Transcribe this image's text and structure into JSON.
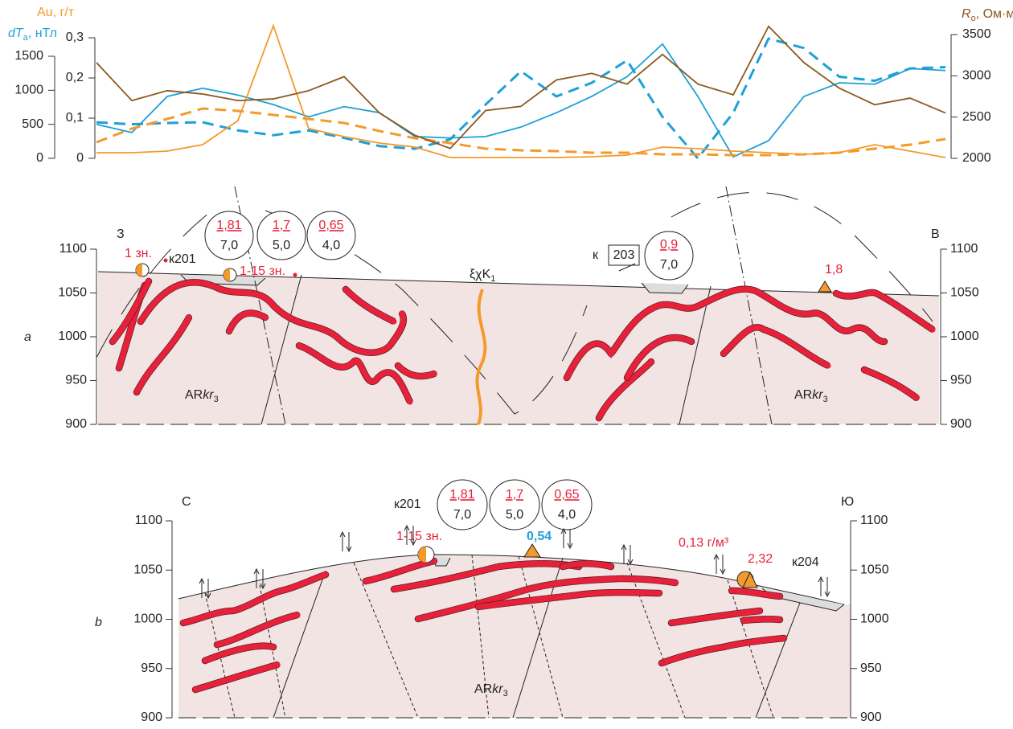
{
  "chart_data": {
    "type": "line",
    "y_title": {
      "italic": "dT",
      "sub": "a",
      "rest": ", нТл"
    },
    "y2_title": "Au, г/т",
    "y3_title": {
      "italic": "R",
      "sub": "о",
      "rest": ", Ом·м"
    },
    "categories": [
      null,
      null,
      null,
      null,
      null,
      null,
      null,
      null,
      null,
      null,
      null,
      null,
      null,
      null,
      null,
      null,
      null,
      null,
      null,
      null,
      null,
      null,
      null,
      null,
      null
    ],
    "ylim": [
      0,
      1500
    ],
    "yticks": [
      0,
      500,
      1000,
      1500
    ],
    "y_color": "#1ea0d7",
    "y2lim": [
      0,
      0.3
    ],
    "y2ticks": [
      0,
      {
        "value": 0.1,
        "label": "0,1"
      },
      {
        "value": 0.2,
        "label": "0,2"
      },
      {
        "value": 0.3,
        "label": "0,3"
      }
    ],
    "y2_color": "#f39a2b",
    "y3lim": [
      2000,
      3500
    ],
    "y3ticks": [
      2000,
      2500,
      3000,
      3500
    ],
    "y3_color": "#8b5a1e",
    "series": [
      {
        "color": "#1ea0d7",
        "dash": false,
        "values": [
          500,
          380,
          910,
          1030,
          930,
          790,
          610,
          760,
          670,
          320,
          300,
          320,
          460,
          670,
          910,
          1200,
          1680,
          910,
          20,
          260,
          910,
          1110,
          1090,
          1320,
          1290
        ]
      },
      {
        "color": "#1ea0d7",
        "dash": true,
        "values": [
          530,
          500,
          520,
          530,
          410,
          340,
          410,
          300,
          180,
          140,
          280,
          790,
          1280,
          910,
          1110,
          1440,
          610,
          0,
          670,
          1760,
          1620,
          1200,
          1140,
          1320,
          1340
        ]
      },
      {
        "color": "#f39a2b",
        "dash": false,
        "axis": "y2",
        "values": [
          0.014,
          0.014,
          0.018,
          0.034,
          0.094,
          0.33,
          0.074,
          0.054,
          0.038,
          0.028,
          0.002,
          0.002,
          0.002,
          0.002,
          0.004,
          0.008,
          0.028,
          0.024,
          0.018,
          0.014,
          0.01,
          0.014,
          0.034,
          0.018,
          0.002
        ]
      },
      {
        "color": "#f39a2b",
        "dash": true,
        "axis": "y2",
        "values": [
          0.04,
          0.074,
          0.098,
          0.124,
          0.118,
          0.108,
          0.098,
          0.088,
          0.068,
          0.05,
          0.038,
          0.024,
          0.02,
          0.018,
          0.014,
          0.014,
          0.01,
          0.01,
          0.008,
          0.008,
          0.01,
          0.014,
          0.024,
          0.034,
          0.048
        ]
      },
      {
        "color": "#8b5a1e",
        "dash": false,
        "axis": "y3",
        "values": [
          3160,
          2700,
          2820,
          2780,
          2700,
          2720,
          2820,
          2990,
          2550,
          2280,
          2120,
          2580,
          2630,
          2950,
          3030,
          2900,
          3260,
          2900,
          2770,
          3600,
          3160,
          2850,
          2650,
          2730,
          2550
        ]
      }
    ]
  },
  "section_a": {
    "label": "a",
    "west": "З",
    "east": "В",
    "ylim": [
      900,
      1100
    ],
    "yticks": [
      900,
      950,
      1000,
      1050,
      1100
    ],
    "zone1": "1 зн.",
    "well": "к201",
    "zone2": "1-15 зн.",
    "intrusion": {
      "base": "ξχK",
      "sub": "1"
    },
    "circles": [
      {
        "top": "1,81",
        "bottom": "7,0"
      },
      {
        "top": "1,7",
        "bottom": "5,0"
      },
      {
        "top": "0,65",
        "bottom": "4,0"
      }
    ],
    "well2": {
      "prefix": "к",
      "box": "203",
      "top": "0,9",
      "bottom": "7,0"
    },
    "sample": "1,8",
    "rock": {
      "base": "AR",
      "italic": "kr",
      "sub": "3"
    }
  },
  "section_b": {
    "label": "b",
    "north": "С",
    "south": "Ю",
    "ylim": [
      900,
      1100
    ],
    "yticks": [
      900,
      950,
      1000,
      1050,
      1100
    ],
    "well": "к201",
    "circles": [
      {
        "top": "1,81",
        "bottom": "7,0"
      },
      {
        "top": "1,7",
        "bottom": "5,0"
      },
      {
        "top": "0,65",
        "bottom": "4,0"
      }
    ],
    "zone": "1-15 зн.",
    "sample1": "0,54",
    "sample2": "0,13 г/м³",
    "sample3": "2,32",
    "well2": "к204",
    "rock": {
      "base": "AR",
      "italic": "kr",
      "sub": "3"
    }
  }
}
